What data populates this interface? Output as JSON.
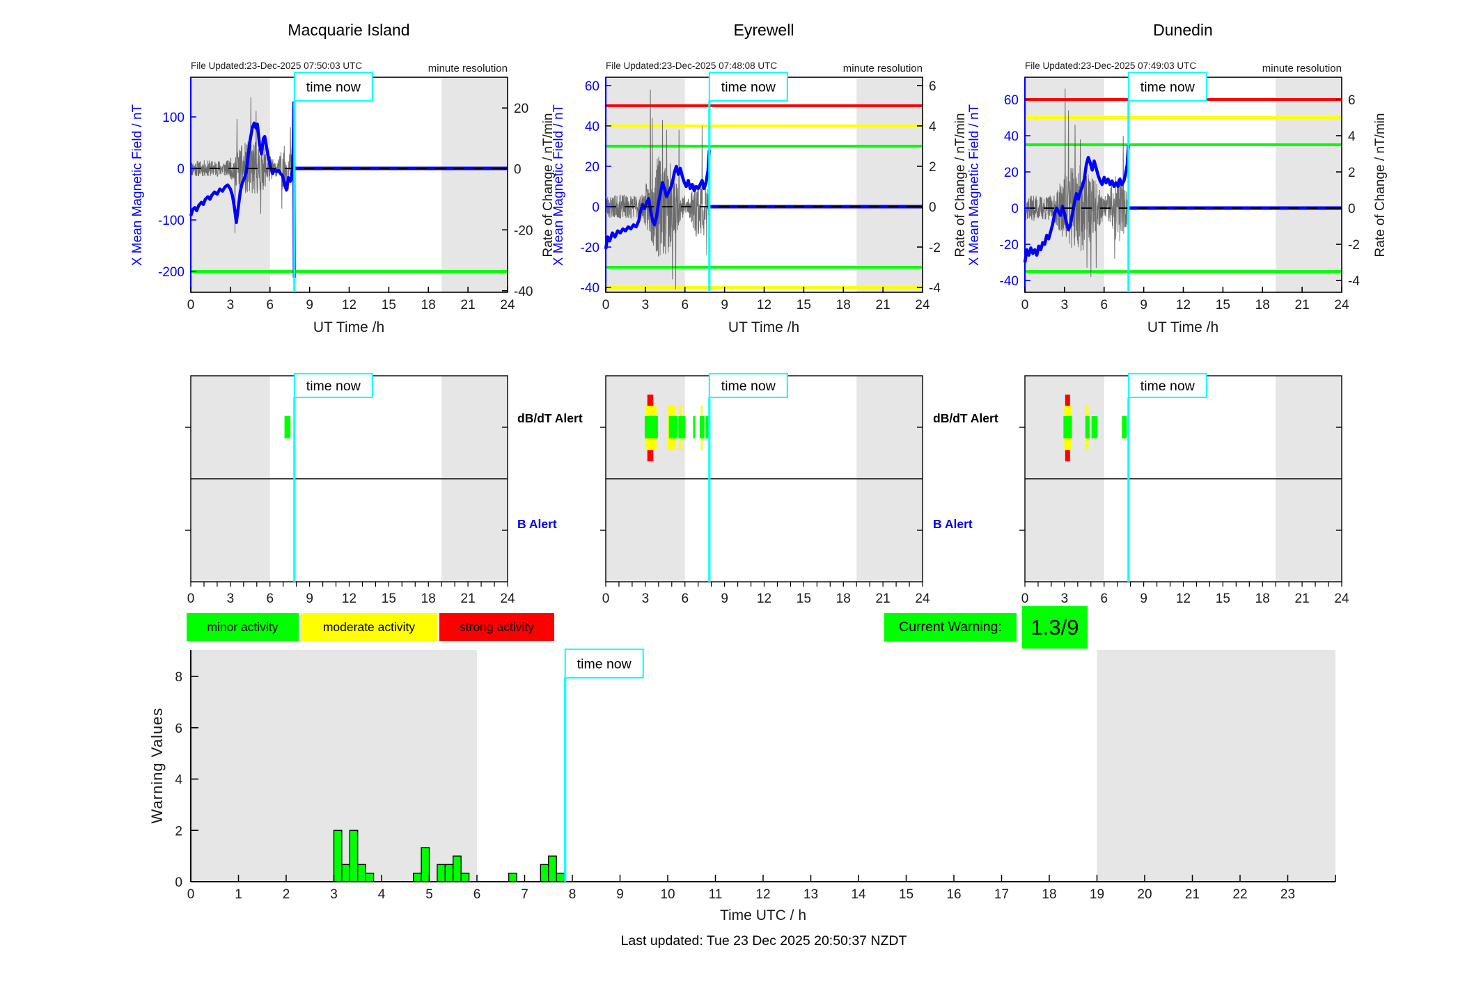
{
  "time_now_label": "time now",
  "alert_labels": {
    "dbdt": "dB/dT Alert",
    "b": "B Alert"
  },
  "activity_legend": {
    "items": [
      {
        "label": "minor activity",
        "color": "#00ff00"
      },
      {
        "label": "moderate activity",
        "color": "#ffff00"
      },
      {
        "label": "strong activity",
        "color": "#ff0000"
      }
    ]
  },
  "current_warning": {
    "label": "Current Warning:",
    "value": "1.3/9",
    "background": "#00ff00"
  },
  "footer": {
    "last_updated": "Last updated: Tue 23 Dec 2025 20:50:37 NZDT"
  },
  "colors": {
    "blue": "#0000ff",
    "cyan": "#00ffff",
    "green": "#00ff00",
    "yellow": "#ffff00",
    "red": "#ff0000",
    "shade": "#e6e6e6",
    "noise": "#4d4d4d",
    "axis": "#000000"
  },
  "chart_data": [
    {
      "type": "line",
      "title": "Macquarie Island",
      "file_updated": "File Updated:23-Dec-2025 07:50:03 UTC",
      "minute_resolution": "minute resolution",
      "xlabel": "UT Time /h",
      "ylabel_left": "X Mean Magnetic Field / nT",
      "ylabel_right": "Rate of Change / nT/min",
      "xticks": [
        0,
        3,
        6,
        9,
        12,
        15,
        18,
        21,
        24
      ],
      "yticks_left": [
        100,
        0,
        -100,
        -200
      ],
      "ylim_left": [
        -240.5,
        177
      ],
      "yticks_right": [
        20,
        0,
        -20,
        -40
      ],
      "ylim_right": [
        -40.5,
        30.1
      ],
      "threshold_lines": [
        {
          "value": -200,
          "color": "#00ff00"
        }
      ],
      "shaded_hours": [
        [
          0,
          6
        ],
        [
          19,
          24
        ]
      ],
      "time_now_hour": 7.85,
      "curve_hours": [
        0,
        0.15,
        0.3,
        0.45,
        0.6,
        0.8,
        0.95,
        1.1,
        1.3,
        1.45,
        1.6,
        1.8,
        2.0,
        2.2,
        2.4,
        2.6,
        2.8,
        3.0,
        3.15,
        3.3,
        3.45,
        3.6,
        3.75,
        3.9,
        4.05,
        4.2,
        4.35,
        4.5,
        4.65,
        4.8,
        4.95,
        5.05,
        5.2,
        5.35,
        5.5,
        5.6,
        5.75,
        5.9,
        6.05,
        6.2,
        6.35,
        6.5,
        6.65,
        6.8,
        6.95,
        7.1,
        7.25,
        7.4,
        7.55,
        7.65,
        7.72,
        7.78,
        7.81,
        7.83,
        7.85
      ],
      "curve_values": [
        -92,
        -80,
        -76,
        -82,
        -72,
        -66,
        -70,
        -60,
        -55,
        -60,
        -52,
        -46,
        -50,
        -40,
        -44,
        -36,
        -32,
        -40,
        -52,
        -75,
        -105,
        -75,
        -45,
        -28,
        -20,
        -8,
        25,
        55,
        78,
        88,
        78,
        86,
        48,
        28,
        58,
        62,
        40,
        18,
        2,
        -10,
        -2,
        -6,
        -4,
        -10,
        -14,
        -30,
        -42,
        -18,
        -25,
        -15,
        5,
        60,
        128,
        -55,
        -212
      ],
      "noise": {
        "seed": 11,
        "base": 16,
        "bursts": [
          [
            2.9,
            6.3,
            38
          ],
          [
            6.6,
            7.85,
            30
          ]
        ],
        "spikes": [
          [
            3.35,
            -126
          ],
          [
            3.5,
            96
          ],
          [
            4.55,
            138
          ],
          [
            4.95,
            112
          ],
          [
            5.3,
            -88
          ],
          [
            6.9,
            -78
          ],
          [
            7.55,
            80
          ],
          [
            7.82,
            -225
          ]
        ]
      }
    },
    {
      "type": "line",
      "title": "Eyrewell",
      "file_updated": "File Updated:23-Dec-2025 07:48:08 UTC",
      "minute_resolution": "minute resolution",
      "xlabel": "UT Time /h",
      "ylabel_left": "X Mean Magnetic Field / nT",
      "ylabel_right": "Rate of Change / nT/min",
      "xticks": [
        0,
        3,
        6,
        9,
        12,
        15,
        18,
        21,
        24
      ],
      "yticks_left": [
        60,
        40,
        20,
        0,
        -20,
        -40
      ],
      "ylim_left": [
        -42.4,
        64.1
      ],
      "yticks_right": [
        6,
        4,
        2,
        0,
        -2,
        -4
      ],
      "ylim_right": [
        -4.24,
        6.41
      ],
      "threshold_lines": [
        {
          "value": 50,
          "color": "#ff0000"
        },
        {
          "value": 40,
          "color": "#ffff00"
        },
        {
          "value": 30,
          "color": "#00ff00"
        },
        {
          "value": -30,
          "color": "#00ff00"
        },
        {
          "value": -40,
          "color": "#ffff00"
        }
      ],
      "shaded_hours": [
        [
          0,
          6
        ],
        [
          19,
          24
        ]
      ],
      "time_now_hour": 7.85,
      "curve_hours": [
        0,
        0.15,
        0.3,
        0.5,
        0.7,
        0.9,
        1.1,
        1.3,
        1.5,
        1.7,
        1.9,
        2.1,
        2.3,
        2.5,
        2.65,
        2.8,
        2.95,
        3.1,
        3.25,
        3.4,
        3.55,
        3.7,
        3.85,
        4.0,
        4.15,
        4.3,
        4.45,
        4.6,
        4.75,
        4.9,
        5.05,
        5.2,
        5.35,
        5.5,
        5.65,
        5.8,
        5.95,
        6.1,
        6.25,
        6.4,
        6.55,
        6.7,
        6.85,
        7.0,
        7.15,
        7.3,
        7.45,
        7.6,
        7.75,
        7.85
      ],
      "curve_values": [
        -21,
        -15,
        -17,
        -13,
        -15,
        -12,
        -13,
        -11,
        -12,
        -10,
        -11,
        -9,
        -10,
        -7,
        -2,
        1,
        -1,
        2,
        4,
        -2,
        -7,
        -9,
        -5,
        2,
        7,
        12,
        9,
        5,
        7,
        9,
        12,
        17,
        20,
        16,
        19,
        15,
        12,
        10,
        13,
        9,
        11,
        8,
        10,
        9,
        11,
        13,
        9,
        12,
        18,
        28
      ],
      "noise": {
        "seed": 23,
        "base": 6,
        "bursts": [
          [
            2.8,
            5.7,
            20
          ],
          [
            6.4,
            7.85,
            11
          ]
        ],
        "spikes": [
          [
            3.38,
            58
          ],
          [
            3.52,
            44
          ],
          [
            4.3,
            43
          ],
          [
            4.62,
            38
          ],
          [
            5.05,
            -36
          ],
          [
            5.3,
            -41
          ],
          [
            5.55,
            38
          ],
          [
            7.3,
            40
          ],
          [
            7.65,
            -24
          ]
        ]
      }
    },
    {
      "type": "line",
      "title": "Dunedin",
      "file_updated": "File Updated:23-Dec-2025 07:49:03 UTC",
      "minute_resolution": "minute resolution",
      "xlabel": "UT Time /h",
      "ylabel_left": "X Mean Magnetic Field / nT",
      "ylabel_right": "Rate of Change / nT/min",
      "xticks": [
        0,
        3,
        6,
        9,
        12,
        15,
        18,
        21,
        24
      ],
      "yticks_left": [
        60,
        40,
        20,
        0,
        -20,
        -40
      ],
      "ylim_left": [
        -46.5,
        72.3
      ],
      "yticks_right": [
        6,
        4,
        2,
        0,
        -2,
        -4
      ],
      "ylim_right": [
        -4.65,
        7.23
      ],
      "threshold_lines": [
        {
          "value": 60,
          "color": "#ff0000"
        },
        {
          "value": 50,
          "color": "#ffff00"
        },
        {
          "value": 35,
          "color": "#00ff00"
        },
        {
          "value": -35,
          "color": "#00ff00"
        }
      ],
      "shaded_hours": [
        [
          0,
          6
        ],
        [
          19,
          24
        ]
      ],
      "time_now_hour": 7.85,
      "curve_hours": [
        0,
        0.15,
        0.3,
        0.45,
        0.6,
        0.75,
        0.9,
        1.05,
        1.2,
        1.35,
        1.5,
        1.65,
        1.8,
        1.95,
        2.1,
        2.25,
        2.4,
        2.55,
        2.7,
        2.85,
        3.0,
        3.15,
        3.3,
        3.45,
        3.6,
        3.75,
        3.9,
        4.05,
        4.2,
        4.35,
        4.5,
        4.65,
        4.8,
        4.95,
        5.1,
        5.25,
        5.4,
        5.55,
        5.7,
        5.85,
        6.0,
        6.15,
        6.3,
        6.45,
        6.6,
        6.75,
        6.9,
        7.05,
        7.2,
        7.35,
        7.5,
        7.6,
        7.75,
        7.85
      ],
      "curve_values": [
        -30,
        -23,
        -26,
        -22,
        -25,
        -23,
        -26,
        -21,
        -23,
        -19,
        -20,
        -15,
        -17,
        -13,
        -9,
        -3,
        0,
        -2,
        -4,
        1,
        -3,
        -8,
        -12,
        -9,
        -3,
        3,
        8,
        5,
        9,
        12,
        16,
        24,
        28,
        25,
        21,
        26,
        22,
        18,
        15,
        13,
        17,
        14,
        16,
        13,
        15,
        12,
        14,
        12,
        16,
        13,
        15,
        18,
        24,
        35
      ],
      "noise": {
        "seed": 37,
        "base": 7,
        "bursts": [
          [
            2.2,
            5.9,
            18
          ],
          [
            6.2,
            7.85,
            12
          ]
        ],
        "spikes": [
          [
            3.05,
            66
          ],
          [
            3.3,
            54
          ],
          [
            3.8,
            46
          ],
          [
            4.2,
            38
          ],
          [
            4.7,
            -33
          ],
          [
            5.0,
            -38
          ],
          [
            5.4,
            -33
          ],
          [
            6.8,
            -28
          ],
          [
            7.45,
            40
          ]
        ]
      }
    },
    {
      "type": "alert-timeline",
      "station": "Macquarie Island",
      "xticks": [
        0,
        3,
        6,
        9,
        12,
        15,
        18,
        21,
        24
      ],
      "shaded_hours": [
        [
          0,
          6
        ],
        [
          19,
          24
        ]
      ],
      "time_now_hour": 7.85,
      "show_row_labels": true,
      "marks": [
        {
          "from": 7.1,
          "to": 7.55,
          "level": "green"
        }
      ]
    },
    {
      "type": "alert-timeline",
      "station": "Eyrewell",
      "xticks": [
        0,
        3,
        6,
        9,
        12,
        15,
        18,
        21,
        24
      ],
      "shaded_hours": [
        [
          0,
          6
        ],
        [
          19,
          24
        ]
      ],
      "time_now_hour": 7.85,
      "show_row_labels": true,
      "marks": [
        {
          "from": 3.15,
          "to": 3.6,
          "level": "red"
        },
        {
          "from": 3.0,
          "to": 3.85,
          "level": "yellow"
        },
        {
          "from": 2.95,
          "to": 3.95,
          "level": "green"
        },
        {
          "from": 4.7,
          "to": 5.25,
          "level": "yellow"
        },
        {
          "from": 4.78,
          "to": 5.42,
          "level": "green"
        },
        {
          "from": 5.55,
          "to": 5.8,
          "level": "yellow"
        },
        {
          "from": 5.5,
          "to": 6.02,
          "level": "green"
        },
        {
          "from": 6.62,
          "to": 6.78,
          "level": "green"
        },
        {
          "from": 7.2,
          "to": 7.33,
          "level": "yellow"
        },
        {
          "from": 7.12,
          "to": 7.48,
          "level": "green"
        },
        {
          "from": 7.56,
          "to": 7.8,
          "level": "green"
        }
      ]
    },
    {
      "type": "alert-timeline",
      "station": "Dunedin",
      "xticks": [
        0,
        3,
        6,
        9,
        12,
        15,
        18,
        21,
        24
      ],
      "shaded_hours": [
        [
          0,
          6
        ],
        [
          19,
          24
        ]
      ],
      "time_now_hour": 7.85,
      "show_row_labels": false,
      "marks": [
        {
          "from": 3.05,
          "to": 3.42,
          "level": "red"
        },
        {
          "from": 2.98,
          "to": 3.5,
          "level": "yellow"
        },
        {
          "from": 2.92,
          "to": 3.56,
          "level": "green"
        },
        {
          "from": 4.6,
          "to": 4.82,
          "level": "yellow"
        },
        {
          "from": 4.58,
          "to": 4.9,
          "level": "green"
        },
        {
          "from": 5.05,
          "to": 5.5,
          "level": "green"
        },
        {
          "from": 7.35,
          "to": 7.72,
          "level": "green"
        }
      ]
    },
    {
      "type": "bar",
      "ylabel": "Warning Values",
      "xlabel": "Time UTC / h",
      "yticks": [
        0,
        2,
        4,
        6,
        8
      ],
      "ylim": [
        0,
        9
      ],
      "xticks": [
        0,
        1,
        2,
        3,
        4,
        5,
        6,
        7,
        8,
        9,
        10,
        11,
        12,
        13,
        14,
        15,
        16,
        17,
        18,
        19,
        20,
        21,
        22,
        23
      ],
      "xlim": [
        0,
        24
      ],
      "bar_width_hours": 0.1667,
      "bar_color": "#00ff00",
      "shaded_hours": [
        [
          0,
          6
        ],
        [
          19,
          24
        ]
      ],
      "time_now_hour": 7.85,
      "bars": [
        {
          "hour": 3.0,
          "value": 2.0
        },
        {
          "hour": 3.1667,
          "value": 0.67
        },
        {
          "hour": 3.3333,
          "value": 2.0
        },
        {
          "hour": 3.5,
          "value": 0.67
        },
        {
          "hour": 3.6667,
          "value": 0.33
        },
        {
          "hour": 4.6667,
          "value": 0.33
        },
        {
          "hour": 4.8333,
          "value": 1.33
        },
        {
          "hour": 5.1667,
          "value": 0.67
        },
        {
          "hour": 5.3333,
          "value": 0.67
        },
        {
          "hour": 5.5,
          "value": 1.0
        },
        {
          "hour": 5.6667,
          "value": 0.33
        },
        {
          "hour": 6.6667,
          "value": 0.33
        },
        {
          "hour": 7.3333,
          "value": 0.67
        },
        {
          "hour": 7.5,
          "value": 1.0
        },
        {
          "hour": 7.6667,
          "value": 0.33
        }
      ]
    }
  ]
}
